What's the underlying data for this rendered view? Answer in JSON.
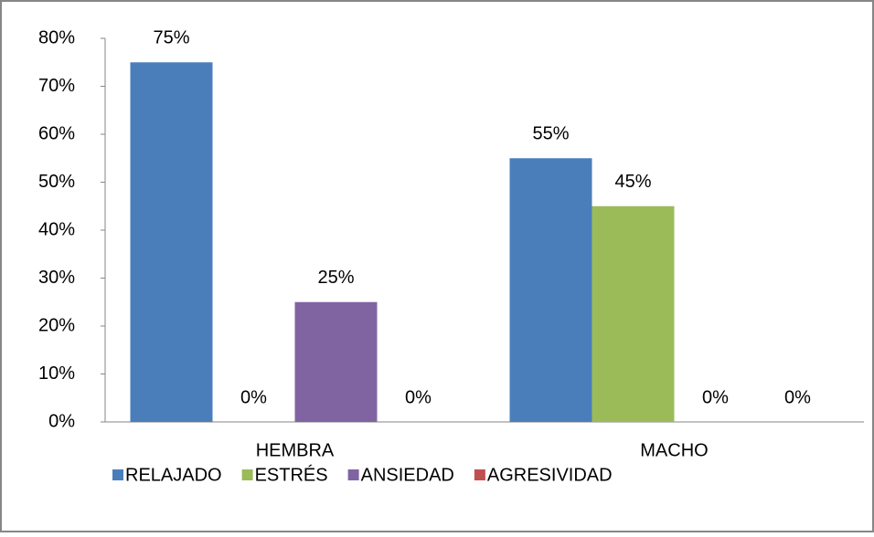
{
  "chart_data": {
    "type": "bar",
    "categories": [
      "HEMBRA",
      "MACHO"
    ],
    "series": [
      {
        "name": "RELAJADO",
        "color": "#4a7ebb",
        "values": [
          75,
          55
        ],
        "value_labels": [
          "75%",
          "55%"
        ]
      },
      {
        "name": "ESTRÉS",
        "color": "#9bbb59",
        "values": [
          0,
          45
        ],
        "value_labels": [
          "0%",
          "45%"
        ]
      },
      {
        "name": "ANSIEDAD",
        "color": "#8064a2",
        "values": [
          25,
          0
        ],
        "value_labels": [
          "25%",
          "0%"
        ]
      },
      {
        "name": "AGRESIVIDAD",
        "color": "#c0504d",
        "values": [
          0,
          0
        ],
        "value_labels": [
          "0%",
          "0%"
        ]
      }
    ],
    "ylim": [
      0,
      80
    ],
    "yticks": [
      {
        "value": 0,
        "label": "0%"
      },
      {
        "value": 10,
        "label": "10%"
      },
      {
        "value": 20,
        "label": "20%"
      },
      {
        "value": 30,
        "label": "30%"
      },
      {
        "value": 40,
        "label": "40%"
      },
      {
        "value": 50,
        "label": "50%"
      },
      {
        "value": 60,
        "label": "60%"
      },
      {
        "value": 70,
        "label": "70%"
      },
      {
        "value": 80,
        "label": "80%"
      }
    ],
    "legend": "bottom"
  }
}
